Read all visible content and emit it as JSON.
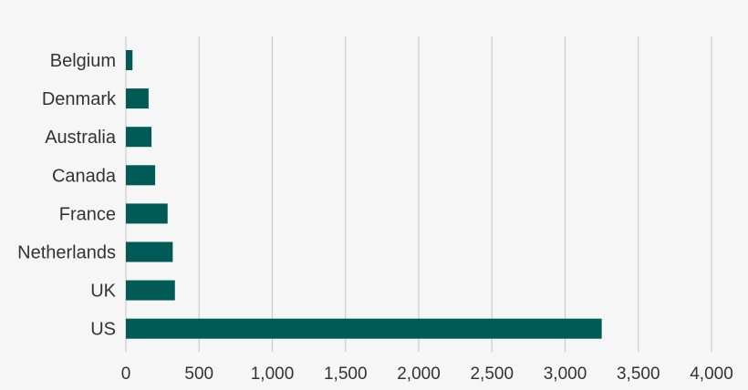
{
  "chart_data": {
    "type": "bar",
    "orientation": "horizontal",
    "categories": [
      "Belgium",
      "Denmark",
      "Australia",
      "Canada",
      "France",
      "Netherlands",
      "UK",
      "US"
    ],
    "values": [
      45,
      155,
      175,
      200,
      285,
      320,
      335,
      3250
    ],
    "xlim": [
      0,
      4000
    ],
    "xticks": [
      0,
      500,
      1000,
      1500,
      2000,
      2500,
      3000,
      3500,
      4000
    ],
    "xtick_labels": [
      "0",
      "500",
      "1,000",
      "1,500",
      "2,000",
      "2,500",
      "3,000",
      "3,500",
      "4,000"
    ],
    "title": "",
    "xlabel": "",
    "ylabel": "",
    "grid": "vertical",
    "legend": "none",
    "colors": {
      "bar": "#005a55",
      "grid": "#cccccc",
      "text": "#333333",
      "background": "#f6f6f6"
    }
  }
}
